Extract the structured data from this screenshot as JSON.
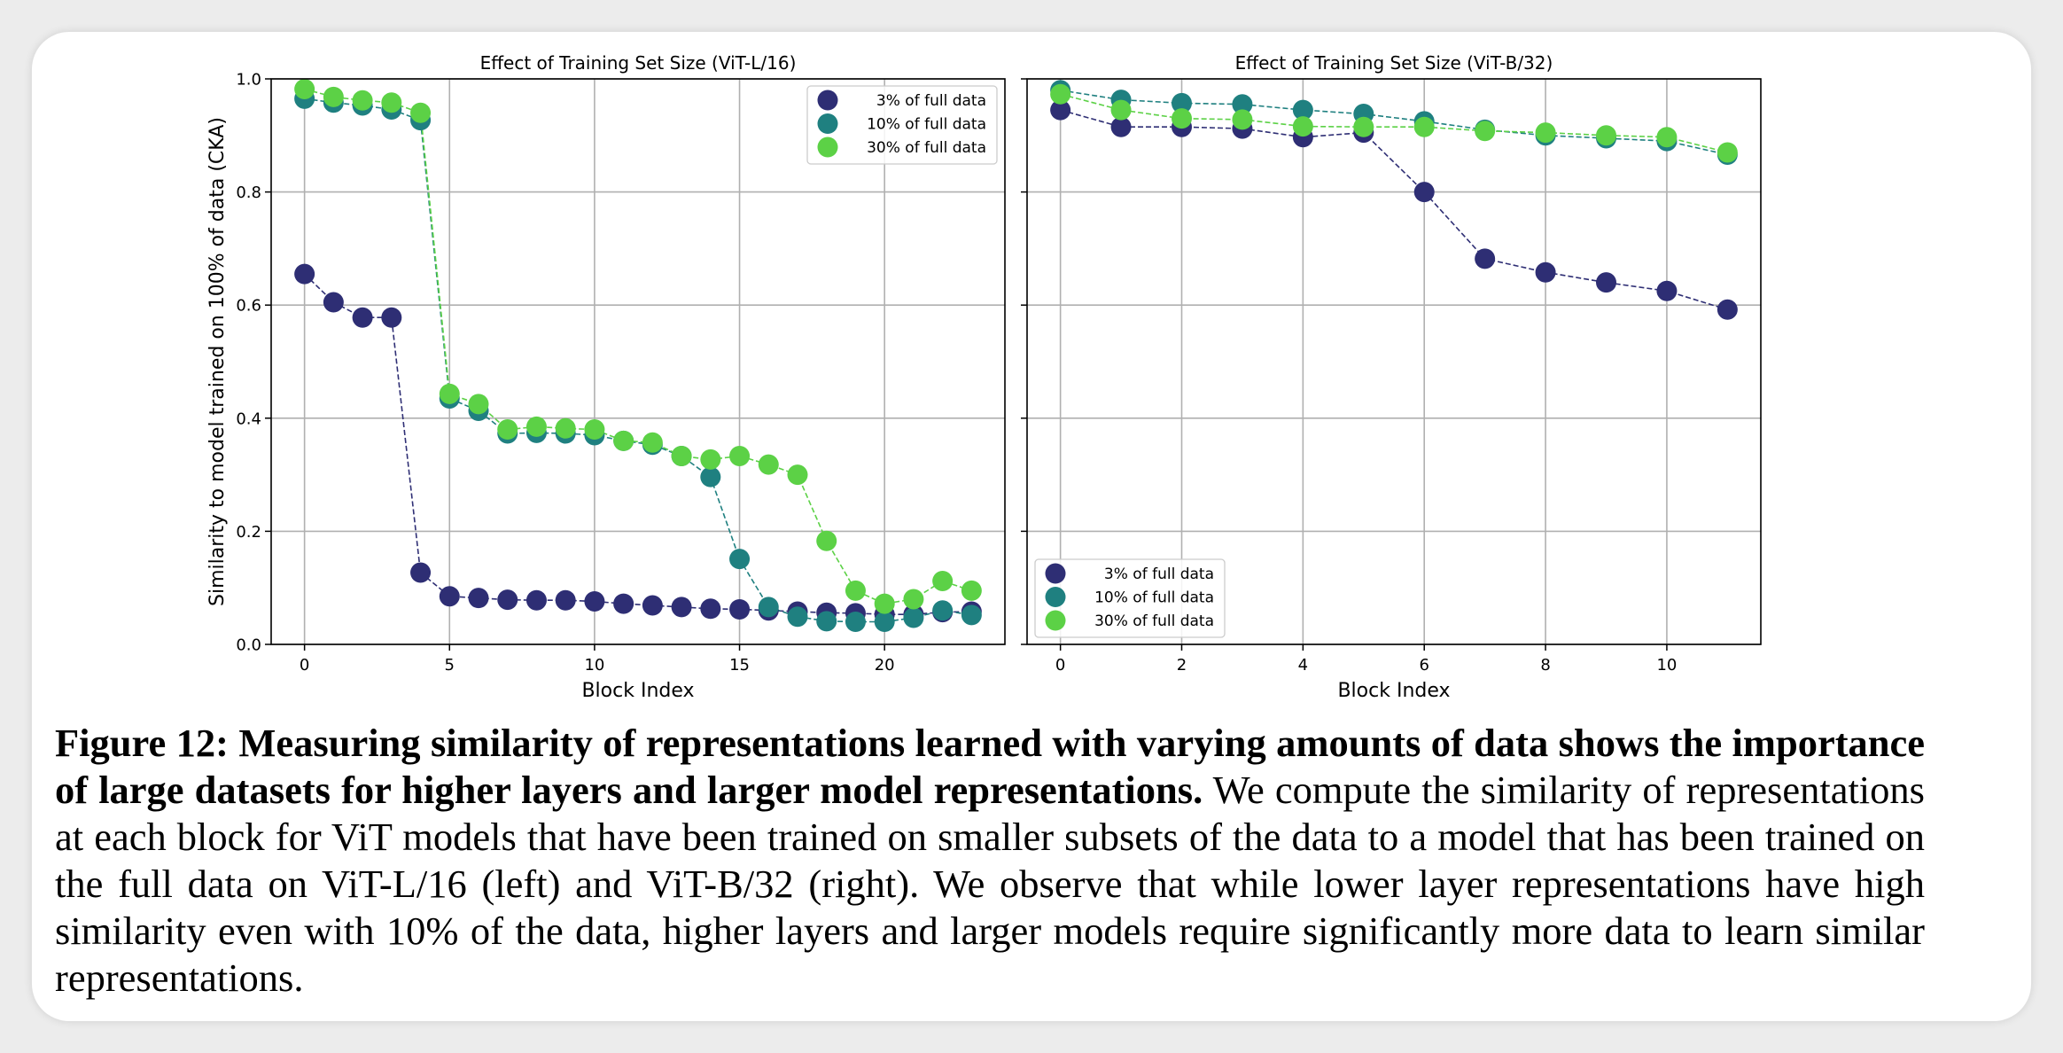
{
  "caption": {
    "label": "Figure 12:",
    "bold_text": "Measuring similarity of representations learned with varying amounts of data shows the importance of large datasets for higher layers and larger model representations.",
    "body": "We compute the similarity of representations at each block for ViT models that have been trained on smaller subsets of the data to a model that has been trained on the full data on ViT-L/16 (left) and ViT-B/32 (right).  We observe that while lower layer representations have high similarity even with 10% of the data, higher layers and larger models require significantly more data to learn similar representations."
  },
  "colors": {
    "3% of full data": "#2e2e74",
    "10% of full data": "#1f8080",
    "30% of full data": "#5cd146"
  },
  "chart_data": [
    {
      "type": "line",
      "title": "Effect of Training Set Size (ViT-L/16)",
      "xlabel": "Block Index",
      "ylabel": "Similarity to model trained on 100% of data (CKA)",
      "xlim": [
        -1.15,
        24.15
      ],
      "ylim": [
        0.0,
        1.0
      ],
      "xticks": [
        0,
        5,
        10,
        15,
        20
      ],
      "yticks": [
        0.0,
        0.2,
        0.4,
        0.6,
        0.8,
        1.0
      ],
      "ytick_labels": [
        "0.0",
        "0.2",
        "0.4",
        "0.6",
        "0.8",
        "1.0"
      ],
      "show_ytick_labels": true,
      "grid": true,
      "legend": "top-right",
      "x": [
        0,
        1,
        2,
        3,
        4,
        5,
        6,
        7,
        8,
        9,
        10,
        11,
        12,
        13,
        14,
        15,
        16,
        17,
        18,
        19,
        20,
        21,
        22,
        23
      ],
      "series": [
        {
          "name": "3% of full data",
          "values": [
            0.655,
            0.605,
            0.578,
            0.578,
            0.127,
            0.085,
            0.082,
            0.079,
            0.078,
            0.078,
            0.076,
            0.072,
            0.069,
            0.066,
            0.063,
            0.062,
            0.06,
            0.058,
            0.056,
            0.055,
            0.053,
            0.053,
            0.057,
            0.058
          ]
        },
        {
          "name": "10% of full data",
          "values": [
            0.965,
            0.958,
            0.953,
            0.946,
            0.927,
            0.435,
            0.413,
            0.373,
            0.374,
            0.373,
            0.37,
            0.36,
            0.353,
            0.333,
            0.296,
            0.151,
            0.066,
            0.049,
            0.041,
            0.04,
            0.04,
            0.047,
            0.06,
            0.052
          ]
        },
        {
          "name": "30% of full data",
          "values": [
            0.982,
            0.968,
            0.962,
            0.958,
            0.94,
            0.443,
            0.425,
            0.38,
            0.385,
            0.382,
            0.38,
            0.36,
            0.357,
            0.333,
            0.327,
            0.333,
            0.318,
            0.3,
            0.183,
            0.095,
            0.072,
            0.08,
            0.112,
            0.095
          ]
        }
      ]
    },
    {
      "type": "line",
      "title": "Effect of Training Set Size (ViT-B/32)",
      "xlabel": "Block Index",
      "ylabel": "",
      "xlim": [
        -0.55,
        11.55
      ],
      "ylim": [
        0.0,
        1.0
      ],
      "xticks": [
        0,
        2,
        4,
        6,
        8,
        10
      ],
      "yticks": [
        0.0,
        0.2,
        0.4,
        0.6,
        0.8,
        1.0
      ],
      "ytick_labels": [
        "",
        "",
        "",
        "",
        "",
        ""
      ],
      "show_ytick_labels": false,
      "grid": true,
      "legend": "bottom-left",
      "x": [
        0,
        1,
        2,
        3,
        4,
        5,
        6,
        7,
        8,
        9,
        10,
        11
      ],
      "series": [
        {
          "name": "3% of full data",
          "values": [
            0.945,
            0.915,
            0.915,
            0.912,
            0.897,
            0.905,
            0.8,
            0.682,
            0.658,
            0.64,
            0.625,
            0.592
          ]
        },
        {
          "name": "10% of full data",
          "values": [
            0.98,
            0.963,
            0.957,
            0.955,
            0.945,
            0.938,
            0.925,
            0.91,
            0.9,
            0.895,
            0.89,
            0.866
          ]
        },
        {
          "name": "30% of full data",
          "values": [
            0.973,
            0.945,
            0.93,
            0.928,
            0.916,
            0.915,
            0.915,
            0.908,
            0.905,
            0.9,
            0.897,
            0.87
          ]
        }
      ]
    }
  ]
}
